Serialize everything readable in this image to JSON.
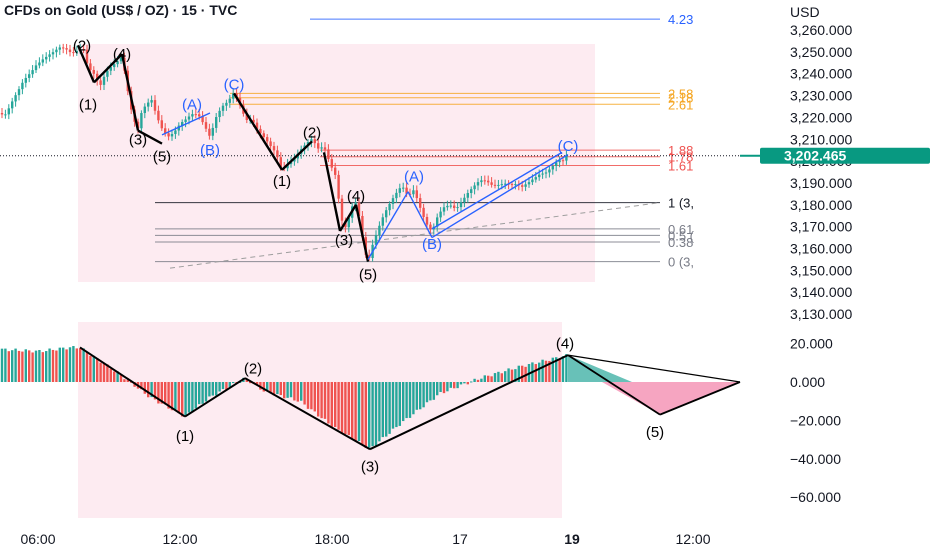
{
  "header": {
    "title": "CFDs on Gold (US$ / OZ) · 15 · TVC",
    "currency": "USD"
  },
  "last_price_badge": "3,202.465",
  "chart_data": [
    {
      "type": "candlestick",
      "title": "CFDs on Gold (US$ / OZ) · 15 · TVC",
      "ylabel": "USD",
      "ylim": [
        3125,
        3265
      ],
      "y_ticks": [
        "3,260.000",
        "3,250.000",
        "3,240.000",
        "3,230.000",
        "3,220.000",
        "3,210.000",
        "3,200.000",
        "3,190.000",
        "3,180.000",
        "3,170.000",
        "3,160.000",
        "3,150.000",
        "3,140.000",
        "3,130.000"
      ],
      "x_ticks": [
        "06:00",
        "12:00",
        "18:00",
        "17",
        "19",
        "12:00"
      ],
      "close_path": [
        [
          0,
          3222
        ],
        [
          6,
          3221
        ],
        [
          12,
          3226
        ],
        [
          18,
          3231
        ],
        [
          24,
          3237
        ],
        [
          30,
          3241
        ],
        [
          36,
          3245
        ],
        [
          42,
          3247
        ],
        [
          48,
          3248
        ],
        [
          54,
          3249
        ],
        [
          60,
          3251
        ],
        [
          66,
          3251
        ],
        [
          72,
          3250
        ],
        [
          78,
          3252
        ],
        [
          83,
          3253
        ],
        [
          88,
          3243
        ],
        [
          94,
          3239
        ],
        [
          100,
          3233
        ],
        [
          106,
          3240
        ],
        [
          112,
          3244
        ],
        [
          118,
          3247
        ],
        [
          122,
          3249
        ],
        [
          126,
          3238
        ],
        [
          130,
          3226
        ],
        [
          134,
          3218
        ],
        [
          138,
          3214
        ],
        [
          142,
          3222
        ],
        [
          148,
          3226
        ],
        [
          152,
          3228
        ],
        [
          156,
          3222
        ],
        [
          162,
          3216
        ],
        [
          168,
          3212
        ],
        [
          174,
          3213
        ],
        [
          180,
          3216
        ],
        [
          186,
          3218
        ],
        [
          192,
          3221
        ],
        [
          198,
          3222
        ],
        [
          204,
          3218
        ],
        [
          210,
          3212
        ],
        [
          216,
          3220
        ],
        [
          222,
          3224
        ],
        [
          228,
          3226
        ],
        [
          234,
          3231
        ],
        [
          240,
          3226
        ],
        [
          246,
          3220
        ],
        [
          252,
          3220
        ],
        [
          258,
          3214
        ],
        [
          264,
          3210
        ],
        [
          270,
          3206
        ],
        [
          276,
          3203
        ],
        [
          282,
          3196
        ],
        [
          288,
          3200
        ],
        [
          294,
          3202
        ],
        [
          300,
          3205
        ],
        [
          306,
          3207
        ],
        [
          312,
          3209
        ],
        [
          318,
          3205
        ],
        [
          324,
          3207
        ],
        [
          330,
          3200
        ],
        [
          336,
          3194
        ],
        [
          340,
          3178
        ],
        [
          344,
          3168
        ],
        [
          348,
          3172
        ],
        [
          352,
          3178
        ],
        [
          356,
          3180
        ],
        [
          360,
          3172
        ],
        [
          364,
          3160
        ],
        [
          368,
          3154
        ],
        [
          372,
          3162
        ],
        [
          378,
          3170
        ],
        [
          384,
          3176
        ],
        [
          390,
          3180
        ],
        [
          396,
          3184
        ],
        [
          402,
          3188
        ],
        [
          408,
          3184
        ],
        [
          414,
          3188
        ],
        [
          420,
          3180
        ],
        [
          426,
          3172
        ],
        [
          432,
          3167
        ],
        [
          438,
          3174
        ],
        [
          444,
          3178
        ],
        [
          450,
          3180
        ],
        [
          456,
          3179
        ],
        [
          462,
          3183
        ],
        [
          468,
          3186
        ],
        [
          474,
          3188
        ],
        [
          480,
          3190
        ],
        [
          486,
          3190
        ],
        [
          492,
          3189
        ],
        [
          498,
          3190
        ],
        [
          504,
          3191
        ],
        [
          510,
          3190
        ],
        [
          516,
          3189
        ],
        [
          522,
          3187
        ],
        [
          528,
          3189
        ],
        [
          534,
          3192
        ],
        [
          540,
          3195
        ],
        [
          546,
          3196
        ],
        [
          552,
          3198
        ],
        [
          558,
          3200
        ],
        [
          564,
          3199
        ],
        [
          568,
          3203
        ]
      ],
      "wave_labels_main": [
        {
          "text": "(2)",
          "x": 82,
          "y": 3253,
          "color": "black"
        },
        {
          "text": "(1)",
          "x": 88,
          "y": 3226,
          "color": "black"
        },
        {
          "text": "(4)",
          "x": 122,
          "y": 3249,
          "color": "black"
        },
        {
          "text": "(3)",
          "x": 138,
          "y": 3210,
          "color": "black"
        },
        {
          "text": "(5)",
          "x": 162,
          "y": 3202,
          "color": "black"
        },
        {
          "text": "(A)",
          "x": 192,
          "y": 3226,
          "color": "blue"
        },
        {
          "text": "(C)",
          "x": 234,
          "y": 3235,
          "color": "blue"
        },
        {
          "text": "(B)",
          "x": 210,
          "y": 3205,
          "color": "blue"
        },
        {
          "text": "(2)",
          "x": 312,
          "y": 3213,
          "color": "black"
        },
        {
          "text": "(1)",
          "x": 282,
          "y": 3191,
          "color": "black"
        },
        {
          "text": "(4)",
          "x": 356,
          "y": 3184,
          "color": "black"
        },
        {
          "text": "(3)",
          "x": 344,
          "y": 3164,
          "color": "black"
        },
        {
          "text": "(5)",
          "x": 368,
          "y": 3148,
          "color": "black"
        },
        {
          "text": "(A)",
          "x": 414,
          "y": 3193,
          "color": "blue"
        },
        {
          "text": "(B)",
          "x": 432,
          "y": 3162,
          "color": "blue"
        },
        {
          "text": "(C)",
          "x": 568,
          "y": 3207,
          "color": "blue"
        }
      ],
      "fibonacci_levels": [
        {
          "label": "4.23",
          "price": 3265,
          "color": "#2962ff"
        },
        {
          "label": "2.58",
          "price": 3231,
          "color": "#f5a623"
        },
        {
          "label": "2.18",
          "price": 3229,
          "color": "#f5a623"
        },
        {
          "label": "2.61",
          "price": 3226,
          "color": "#f5a623"
        },
        {
          "label": "1.88",
          "price": 3205,
          "color": "#ef5350"
        },
        {
          "label": "1.78",
          "price": 3202,
          "color": "#ef5350"
        },
        {
          "label": "1.61",
          "price": 3198,
          "color": "#ef5350"
        },
        {
          "label": "1 (3,",
          "price": 3181,
          "color": "#131722"
        },
        {
          "label": "0.61",
          "price": 3169,
          "color": "#787b86"
        },
        {
          "label": "0.5 (",
          "price": 3166,
          "color": "#787b86"
        },
        {
          "label": "0.38",
          "price": 3163,
          "color": "#787b86"
        },
        {
          "label": "0 (3,",
          "price": 3154,
          "color": "#787b86"
        }
      ]
    },
    {
      "type": "histogram",
      "ylim": [
        -68,
        25
      ],
      "y_ticks": [
        "20.000",
        "0.000",
        "−20.000",
        "−40.000",
        "−60.000"
      ],
      "oscillator_path": [
        [
          0,
          17
        ],
        [
          40,
          16
        ],
        [
          70,
          18
        ],
        [
          80,
          18
        ],
        [
          120,
          4
        ],
        [
          150,
          -8
        ],
        [
          185,
          -18
        ],
        [
          210,
          -8
        ],
        [
          245,
          2
        ],
        [
          265,
          -5
        ],
        [
          300,
          -10
        ],
        [
          335,
          -24
        ],
        [
          370,
          -35
        ],
        [
          400,
          -22
        ],
        [
          440,
          -6
        ],
        [
          480,
          2
        ],
        [
          520,
          8
        ],
        [
          568,
          14
        ]
      ],
      "wave_labels_osc": [
        {
          "text": "(1)",
          "x": 185,
          "y": -28
        },
        {
          "text": "(2)",
          "x": 253,
          "y": 7
        },
        {
          "text": "(3)",
          "x": 370,
          "y": -44
        },
        {
          "text": "(4)",
          "x": 565,
          "y": 20
        },
        {
          "text": "(5)",
          "x": 655,
          "y": -26
        }
      ],
      "projection": {
        "start": [
          568,
          14
        ],
        "green_end": [
          632,
          0
        ],
        "red_low": [
          660,
          -17
        ],
        "zero_end": [
          740,
          0
        ]
      }
    }
  ],
  "colors": {
    "up": "#26a69a",
    "down": "#ef5350",
    "wave_black": "#000000",
    "wave_blue": "#2962ff",
    "zone": "#fce4ec",
    "price_badge": "#089981"
  }
}
